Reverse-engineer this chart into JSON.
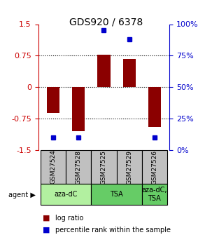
{
  "title": "GDS920 / 6378",
  "samples": [
    "GSM27524",
    "GSM27528",
    "GSM27525",
    "GSM27529",
    "GSM27526"
  ],
  "log_ratios": [
    -0.62,
    -1.05,
    0.78,
    0.68,
    -0.95
  ],
  "percentile_ranks": [
    10,
    10,
    95,
    88,
    10
  ],
  "bar_color": "#8B0000",
  "dot_color": "#0000CD",
  "ylim": [
    -1.5,
    1.5
  ],
  "yticks_left": [
    -1.5,
    -0.75,
    0,
    0.75,
    1.5
  ],
  "yticks_right": [
    0,
    25,
    50,
    75,
    100
  ],
  "hlines": [
    -0.75,
    0,
    0.75
  ],
  "agent_groups": [
    {
      "label": "aza-dC",
      "span": [
        0,
        2
      ],
      "color": "#90EE90"
    },
    {
      "label": "TSA",
      "span": [
        2,
        4
      ],
      "color": "#66CC66"
    },
    {
      "label": "aza-dC,\nTSA",
      "span": [
        4,
        5
      ],
      "color": "#66CC66"
    }
  ],
  "background_color": "#ffffff",
  "plot_bg_color": "#ffffff",
  "grid_color": "#000000",
  "sample_box_color": "#c0c0c0",
  "left_axis_color": "#cc0000",
  "right_axis_color": "#0000cc",
  "bar_width": 0.5
}
